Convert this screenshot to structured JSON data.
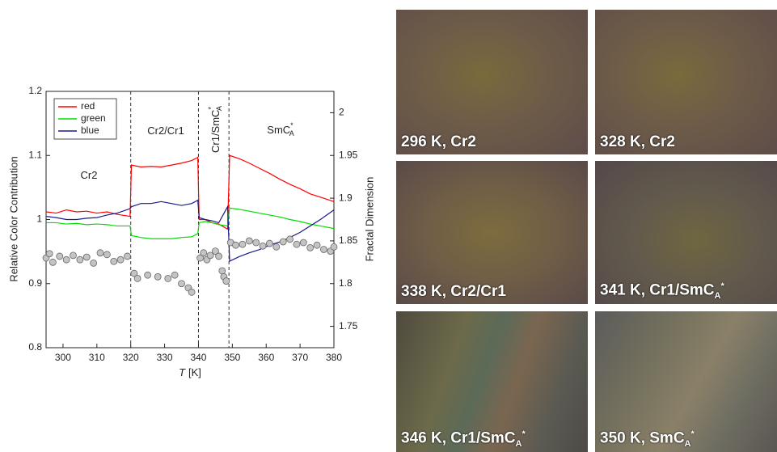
{
  "chart_data": {
    "type": "line",
    "ylabel": "Relative Color Contribution",
    "y2label": "Fractal Dimension",
    "xlabel": {
      "symbol": "T",
      "unit": "[K]"
    },
    "xlim": [
      295,
      380
    ],
    "xticks": [
      300,
      310,
      320,
      330,
      340,
      350,
      360,
      370,
      380
    ],
    "ylim": [
      0.8,
      1.2
    ],
    "yticks": [
      0.8,
      0.9,
      1,
      1.1,
      1.2
    ],
    "y2lim": [
      1.725,
      2.025
    ],
    "y2ticks": [
      1.75,
      1.8,
      1.85,
      1.9,
      1.95,
      2
    ],
    "vlines": [
      320,
      340,
      349
    ],
    "legend": "top-left",
    "annotations": [
      {
        "text": "Cr2"
      },
      {
        "text": "Cr2/Cr1"
      },
      {
        "text": "Cr1/SmC",
        "sup": "*",
        "sub": "A"
      },
      {
        "text": "SmC",
        "sup": "*",
        "sub": "A"
      }
    ],
    "x": [
      295,
      298,
      301,
      304,
      307,
      310,
      313,
      316,
      319.8,
      320.2,
      323,
      326,
      329,
      332,
      335,
      338,
      339.8,
      340.2,
      342,
      344,
      346,
      348.6,
      349.2,
      352,
      355,
      358,
      361,
      364,
      367,
      370,
      373,
      376,
      380
    ],
    "series": [
      {
        "name": "red",
        "color": "#ff0000",
        "values": [
          1.012,
          1.01,
          1.015,
          1.012,
          1.013,
          1.01,
          1.012,
          1.008,
          1.005,
          1.085,
          1.082,
          1.083,
          1.082,
          1.085,
          1.088,
          1.092,
          1.097,
          1.0,
          1.0,
          0.995,
          0.993,
          0.985,
          1.1,
          1.095,
          1.088,
          1.08,
          1.072,
          1.063,
          1.055,
          1.048,
          1.04,
          1.035,
          1.028
        ]
      },
      {
        "name": "green",
        "color": "#00dd00",
        "values": [
          0.995,
          0.995,
          0.993,
          0.994,
          0.992,
          0.993,
          0.992,
          0.99,
          0.99,
          0.975,
          0.972,
          0.97,
          0.97,
          0.97,
          0.972,
          0.973,
          0.978,
          0.995,
          0.997,
          0.995,
          0.992,
          0.99,
          1.018,
          1.016,
          1.013,
          1.01,
          1.007,
          1.004,
          1.0,
          0.997,
          0.993,
          0.99,
          0.986
        ]
      },
      {
        "name": "blue",
        "color": "#1a1a8c",
        "values": [
          1.005,
          1.003,
          1.0,
          1.0,
          1.002,
          1.003,
          1.007,
          1.01,
          1.017,
          1.02,
          1.025,
          1.025,
          1.028,
          1.025,
          1.022,
          1.025,
          1.03,
          1.003,
          1.0,
          0.998,
          0.995,
          1.02,
          0.935,
          0.942,
          0.948,
          0.953,
          0.96,
          0.965,
          0.972,
          0.98,
          0.99,
          1.0,
          1.015
        ]
      },
      {
        "type": "scatter",
        "axis": "y2",
        "color": "#c4c4c4",
        "x": [
          295,
          296,
          297,
          299,
          301,
          303,
          305,
          307,
          309,
          311,
          313,
          315,
          317,
          319,
          321,
          322,
          325,
          328,
          331,
          333,
          335,
          337,
          338,
          340.5,
          341.5,
          342.5,
          343.5,
          345,
          346,
          347,
          347.5,
          348.2,
          349.5,
          351,
          353,
          355,
          357,
          359,
          361,
          363,
          365,
          367,
          369,
          371,
          373,
          375,
          377,
          379,
          380
        ],
        "values": [
          1.83,
          1.835,
          1.825,
          1.832,
          1.828,
          1.833,
          1.828,
          1.831,
          1.824,
          1.836,
          1.834,
          1.826,
          1.828,
          1.832,
          1.812,
          1.806,
          1.81,
          1.808,
          1.806,
          1.81,
          1.8,
          1.795,
          1.79,
          1.83,
          1.836,
          1.828,
          1.833,
          1.838,
          1.832,
          1.815,
          1.808,
          1.803,
          1.848,
          1.845,
          1.846,
          1.85,
          1.848,
          1.844,
          1.847,
          1.843,
          1.849,
          1.852,
          1.846,
          1.848,
          1.842,
          1.845,
          1.84,
          1.838,
          1.843
        ]
      }
    ]
  },
  "panels": [
    {
      "label": "296 K, Cr2"
    },
    {
      "label": "328 K, Cr2"
    },
    {
      "label": "338 K, Cr2/Cr1"
    },
    {
      "label": "341 K, Cr1/SmC",
      "sub": "A",
      "sup": "*"
    },
    {
      "label": "346 K, Cr1/SmC",
      "sub": "A",
      "sup": "*"
    },
    {
      "label": "350 K, SmC",
      "sub": "A",
      "sup": "*"
    }
  ]
}
